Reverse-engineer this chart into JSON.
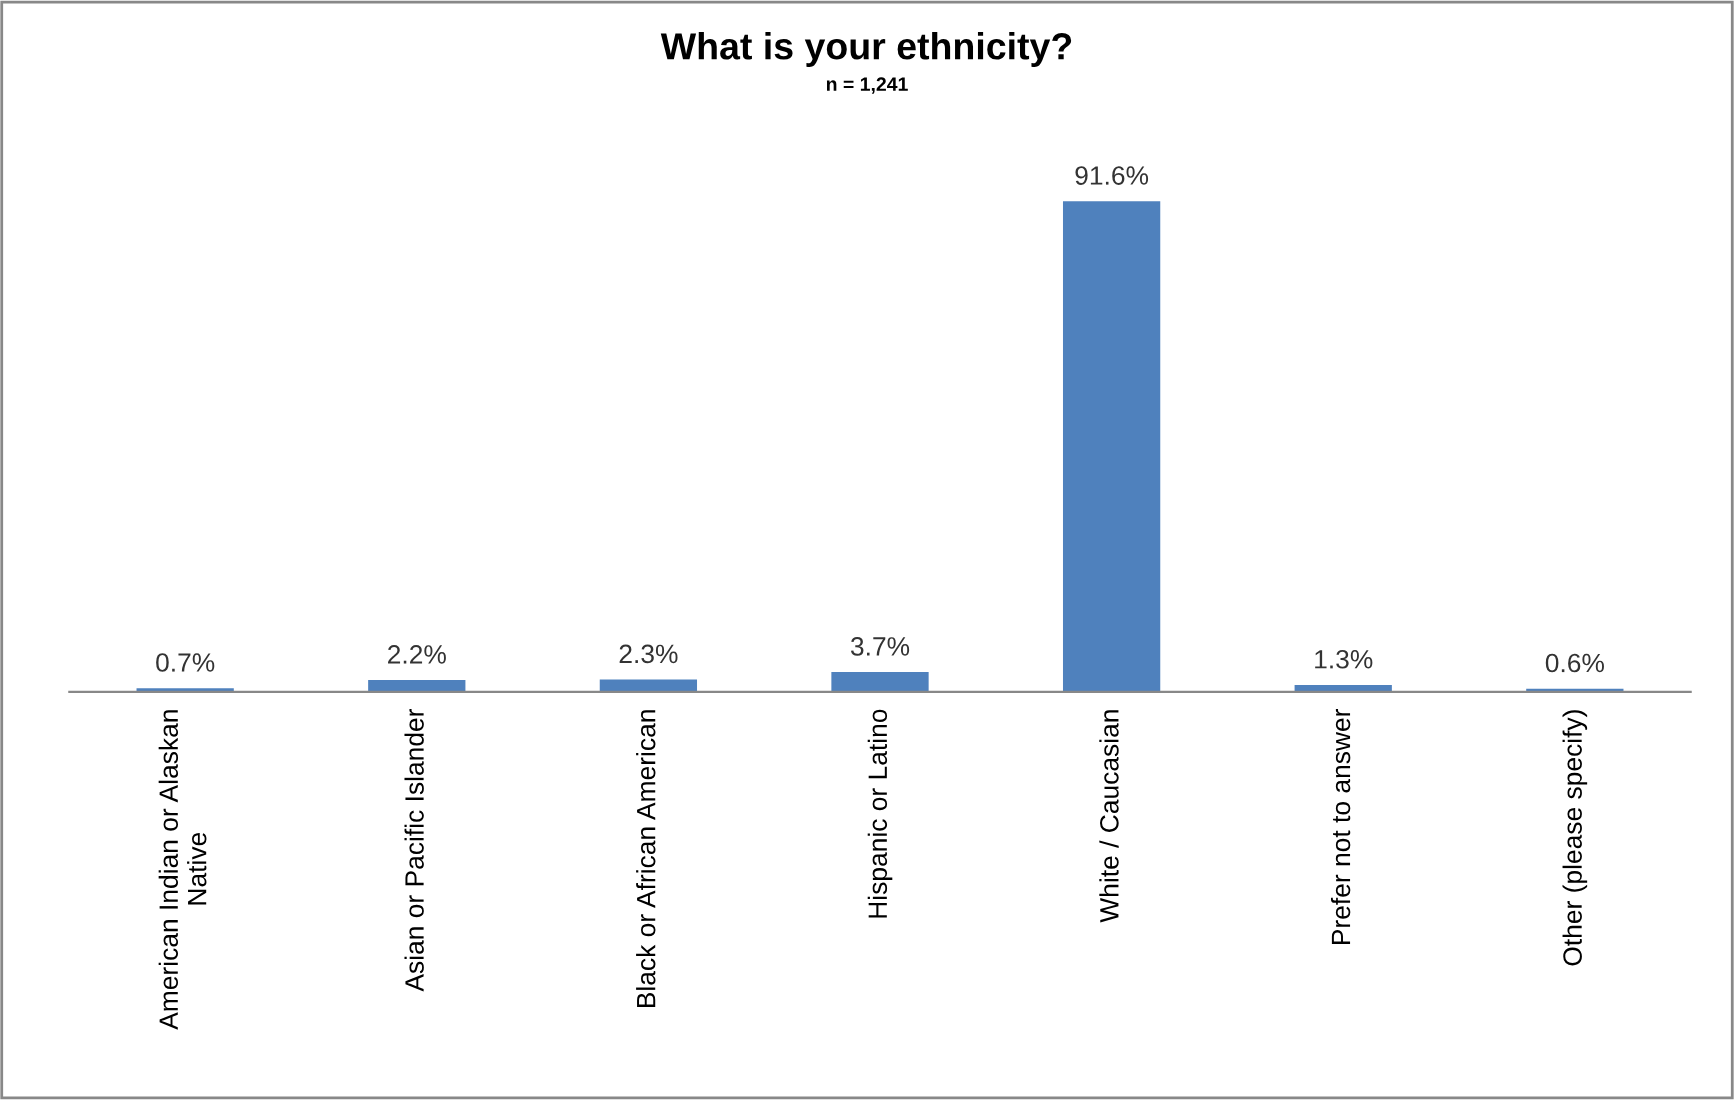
{
  "chart_data": {
    "type": "bar",
    "title": "What is your ethnicity?",
    "subtitle": "n = 1,241",
    "categories": [
      "American Indian or Alaskan\nNative",
      "Asian or Pacific Islander",
      "Black or African American",
      "Hispanic or Latino",
      "White / Caucasian",
      "Prefer not to answer",
      "Other (please specify)"
    ],
    "values": [
      0.7,
      2.2,
      2.3,
      3.7,
      91.6,
      1.3,
      0.6
    ],
    "value_labels": [
      "0.7%",
      "2.2%",
      "2.3%",
      "3.7%",
      "91.6%",
      "1.3%",
      "0.6%"
    ],
    "color": "#4f81bd"
  }
}
